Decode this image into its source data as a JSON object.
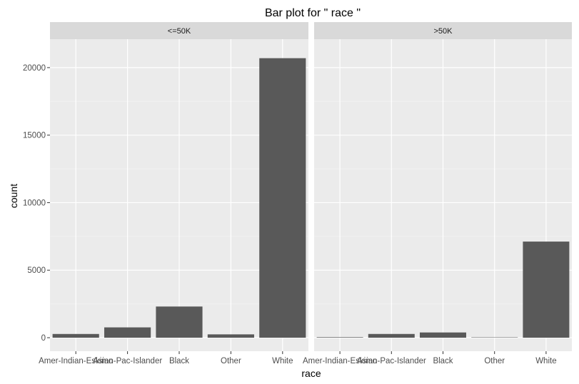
{
  "chart_data": {
    "type": "bar",
    "title": "Bar plot for \" race \"",
    "xlabel": "race",
    "ylabel": "count",
    "categories": [
      "Amer-Indian-Eskimo",
      "Asian-Pac-Islander",
      "Black",
      "Other",
      "White"
    ],
    "ylim": [
      0,
      22000
    ],
    "yticks": [
      0,
      5000,
      10000,
      15000,
      20000
    ],
    "grid": true,
    "facets": [
      {
        "label": "<=50K",
        "values": [
          275,
          763,
          2308,
          246,
          20699
        ]
      },
      {
        "label": ">50K",
        "values": [
          36,
          276,
          387,
          25,
          7117
        ]
      }
    ]
  },
  "colors": {
    "bar": "#595959",
    "panel": "#ebebeb",
    "strip": "#d9d9d9",
    "grid_major": "#ffffff",
    "grid_minor": "#f3f3f3"
  }
}
